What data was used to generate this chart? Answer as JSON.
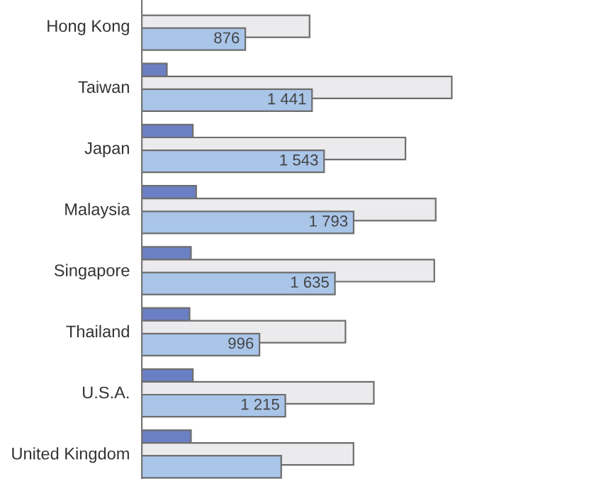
{
  "chart_data": {
    "type": "bar",
    "orientation": "horizontal",
    "categories": [
      "Hong Kong",
      "Taiwan",
      "Japan",
      "Malaysia",
      "Singapore",
      "Thailand",
      "U.S.A.",
      "United Kingdom"
    ],
    "series": [
      {
        "color": "#6b7fc4",
        "values": [
          null,
          212,
          432,
          460,
          416,
          404,
          432,
          416
        ]
      },
      {
        "color": "#ebebee",
        "values": [
          1420,
          2624,
          2232,
          2488,
          2476,
          1724,
          1964,
          1792
        ]
      },
      {
        "color": "#a9c5e8",
        "values": [
          876,
          1441,
          1543,
          1793,
          1635,
          996,
          1215,
          1180
        ],
        "value_labels": [
          "876",
          "1 441",
          "1 543",
          "1 793",
          "1 635",
          "996",
          "1 215",
          null
        ]
      }
    ],
    "grid": false,
    "legend": false,
    "tick_labels": "y"
  }
}
